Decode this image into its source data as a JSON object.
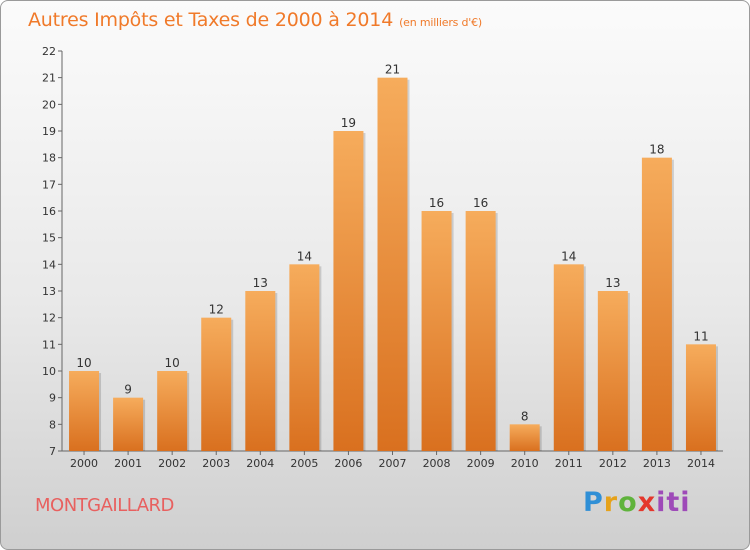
{
  "title": "Autres Impôts et Taxes de 2000 à 2014",
  "subtitle": "(en milliers d'€)",
  "town": "MONTGAILLARD",
  "logo": {
    "p": "P",
    "r": "r",
    "o": "o",
    "x": "x",
    "iti": "iti"
  },
  "colors": {
    "title": "#f07a2a",
    "town": "#e8605f",
    "bar_top": "#f6ac5c",
    "bar_bottom": "#d9701f"
  },
  "chart_data": {
    "type": "bar",
    "categories": [
      "2000",
      "2001",
      "2002",
      "2003",
      "2004",
      "2005",
      "2006",
      "2007",
      "2008",
      "2009",
      "2010",
      "2011",
      "2012",
      "2013",
      "2014"
    ],
    "values": [
      10,
      9,
      10,
      12,
      13,
      14,
      19,
      21,
      16,
      16,
      8,
      14,
      13,
      18,
      11
    ],
    "ylim": [
      7,
      22
    ],
    "yticks": [
      7,
      8,
      9,
      10,
      11,
      12,
      13,
      14,
      15,
      16,
      17,
      18,
      19,
      20,
      21,
      22
    ],
    "grid": false,
    "xlabel": "",
    "ylabel": ""
  }
}
